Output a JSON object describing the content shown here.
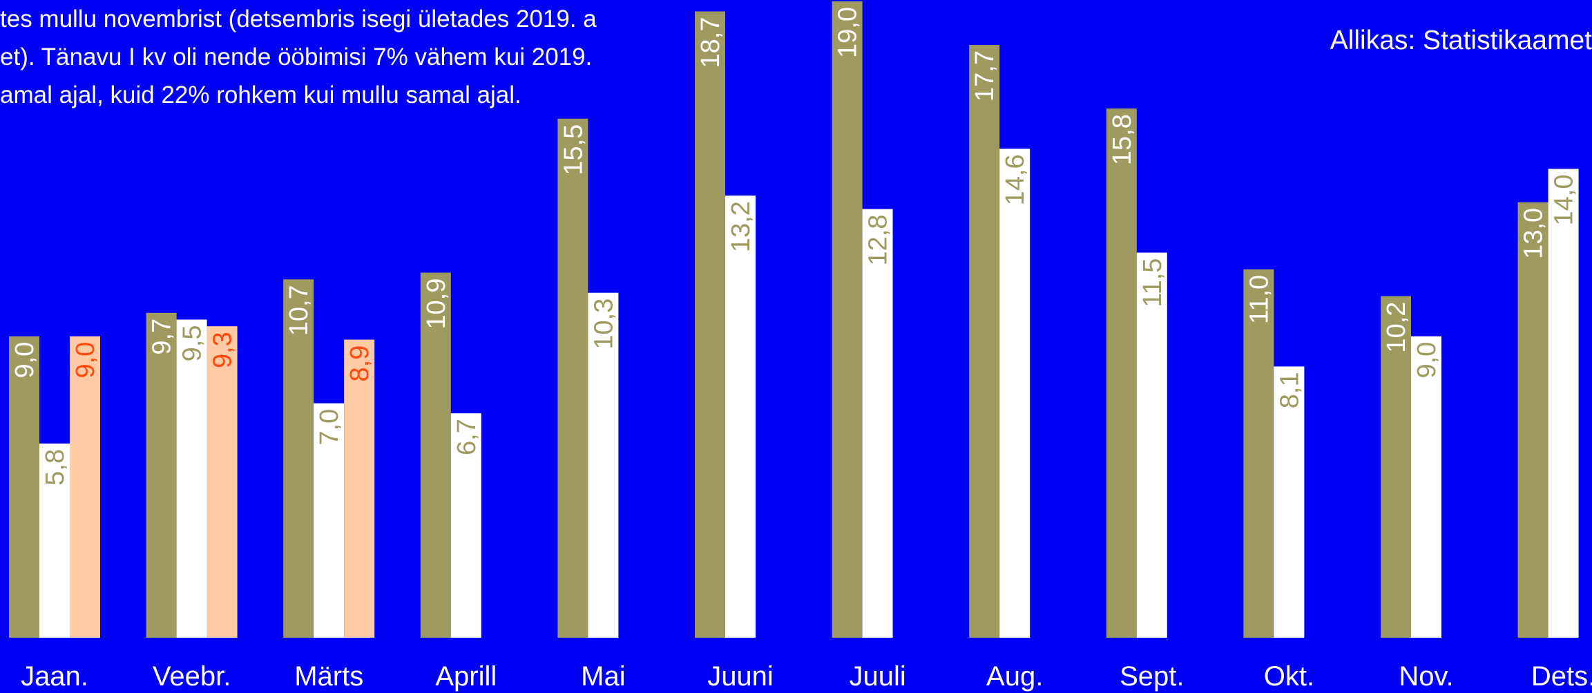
{
  "intro_lines": [
    "tes mullu novembrist (detsembris isegi ületades 2019. a",
    "et). Tänavu I kv oli nende ööbimisi 7% vähem kui 2019.",
    "amal ajal, kuid 22% rohkem kui mullu samal ajal."
  ],
  "source": "Allikas: Statistikaamet",
  "colors": {
    "background": "#0000F5",
    "series_2019": "#9E9A60",
    "series_2020": "#FFFFFF",
    "series_2021": "#FFCBA4",
    "label_on_2019": "#FFFFFF",
    "label_on_2020": "#9E9A60",
    "label_on_2021": "#FF4A12"
  },
  "chart_data": {
    "type": "bar",
    "categories": [
      "Jaan.",
      "Veebr.",
      "Märts",
      "Aprill",
      "Mai",
      "Juuni",
      "Juuli",
      "Aug.",
      "Sept.",
      "Okt.",
      "Nov.",
      "Dets."
    ],
    "series": [
      {
        "values": [
          9.0,
          9.7,
          10.7,
          10.9,
          15.5,
          18.7,
          19.0,
          17.7,
          15.8,
          11.0,
          10.2,
          13.0
        ],
        "labels": [
          "9,0",
          "9,7",
          "10,7",
          "10,9",
          "15,5",
          "18,7",
          "19,0",
          "17,7",
          "15,8",
          "11,0",
          "10,2",
          "13,0"
        ]
      },
      {
        "values": [
          5.8,
          9.5,
          7.0,
          6.7,
          10.3,
          13.2,
          12.8,
          14.6,
          11.5,
          8.1,
          9.0,
          14.0
        ],
        "labels": [
          "5,8",
          "9,5",
          "7,0",
          "6,7",
          "10,3",
          "13,2",
          "12,8",
          "14,6",
          "11,5",
          "8,1",
          "9,0",
          "14,0"
        ]
      },
      {
        "values": [
          9.0,
          9.3,
          8.9,
          null,
          null,
          null,
          null,
          null,
          null,
          null,
          null,
          null
        ],
        "labels": [
          "9,0",
          "9,3",
          "8,9",
          null,
          null,
          null,
          null,
          null,
          null,
          null,
          null,
          null
        ]
      }
    ],
    "ylim": [
      0,
      19.0
    ],
    "grid": false,
    "legend": "none"
  }
}
